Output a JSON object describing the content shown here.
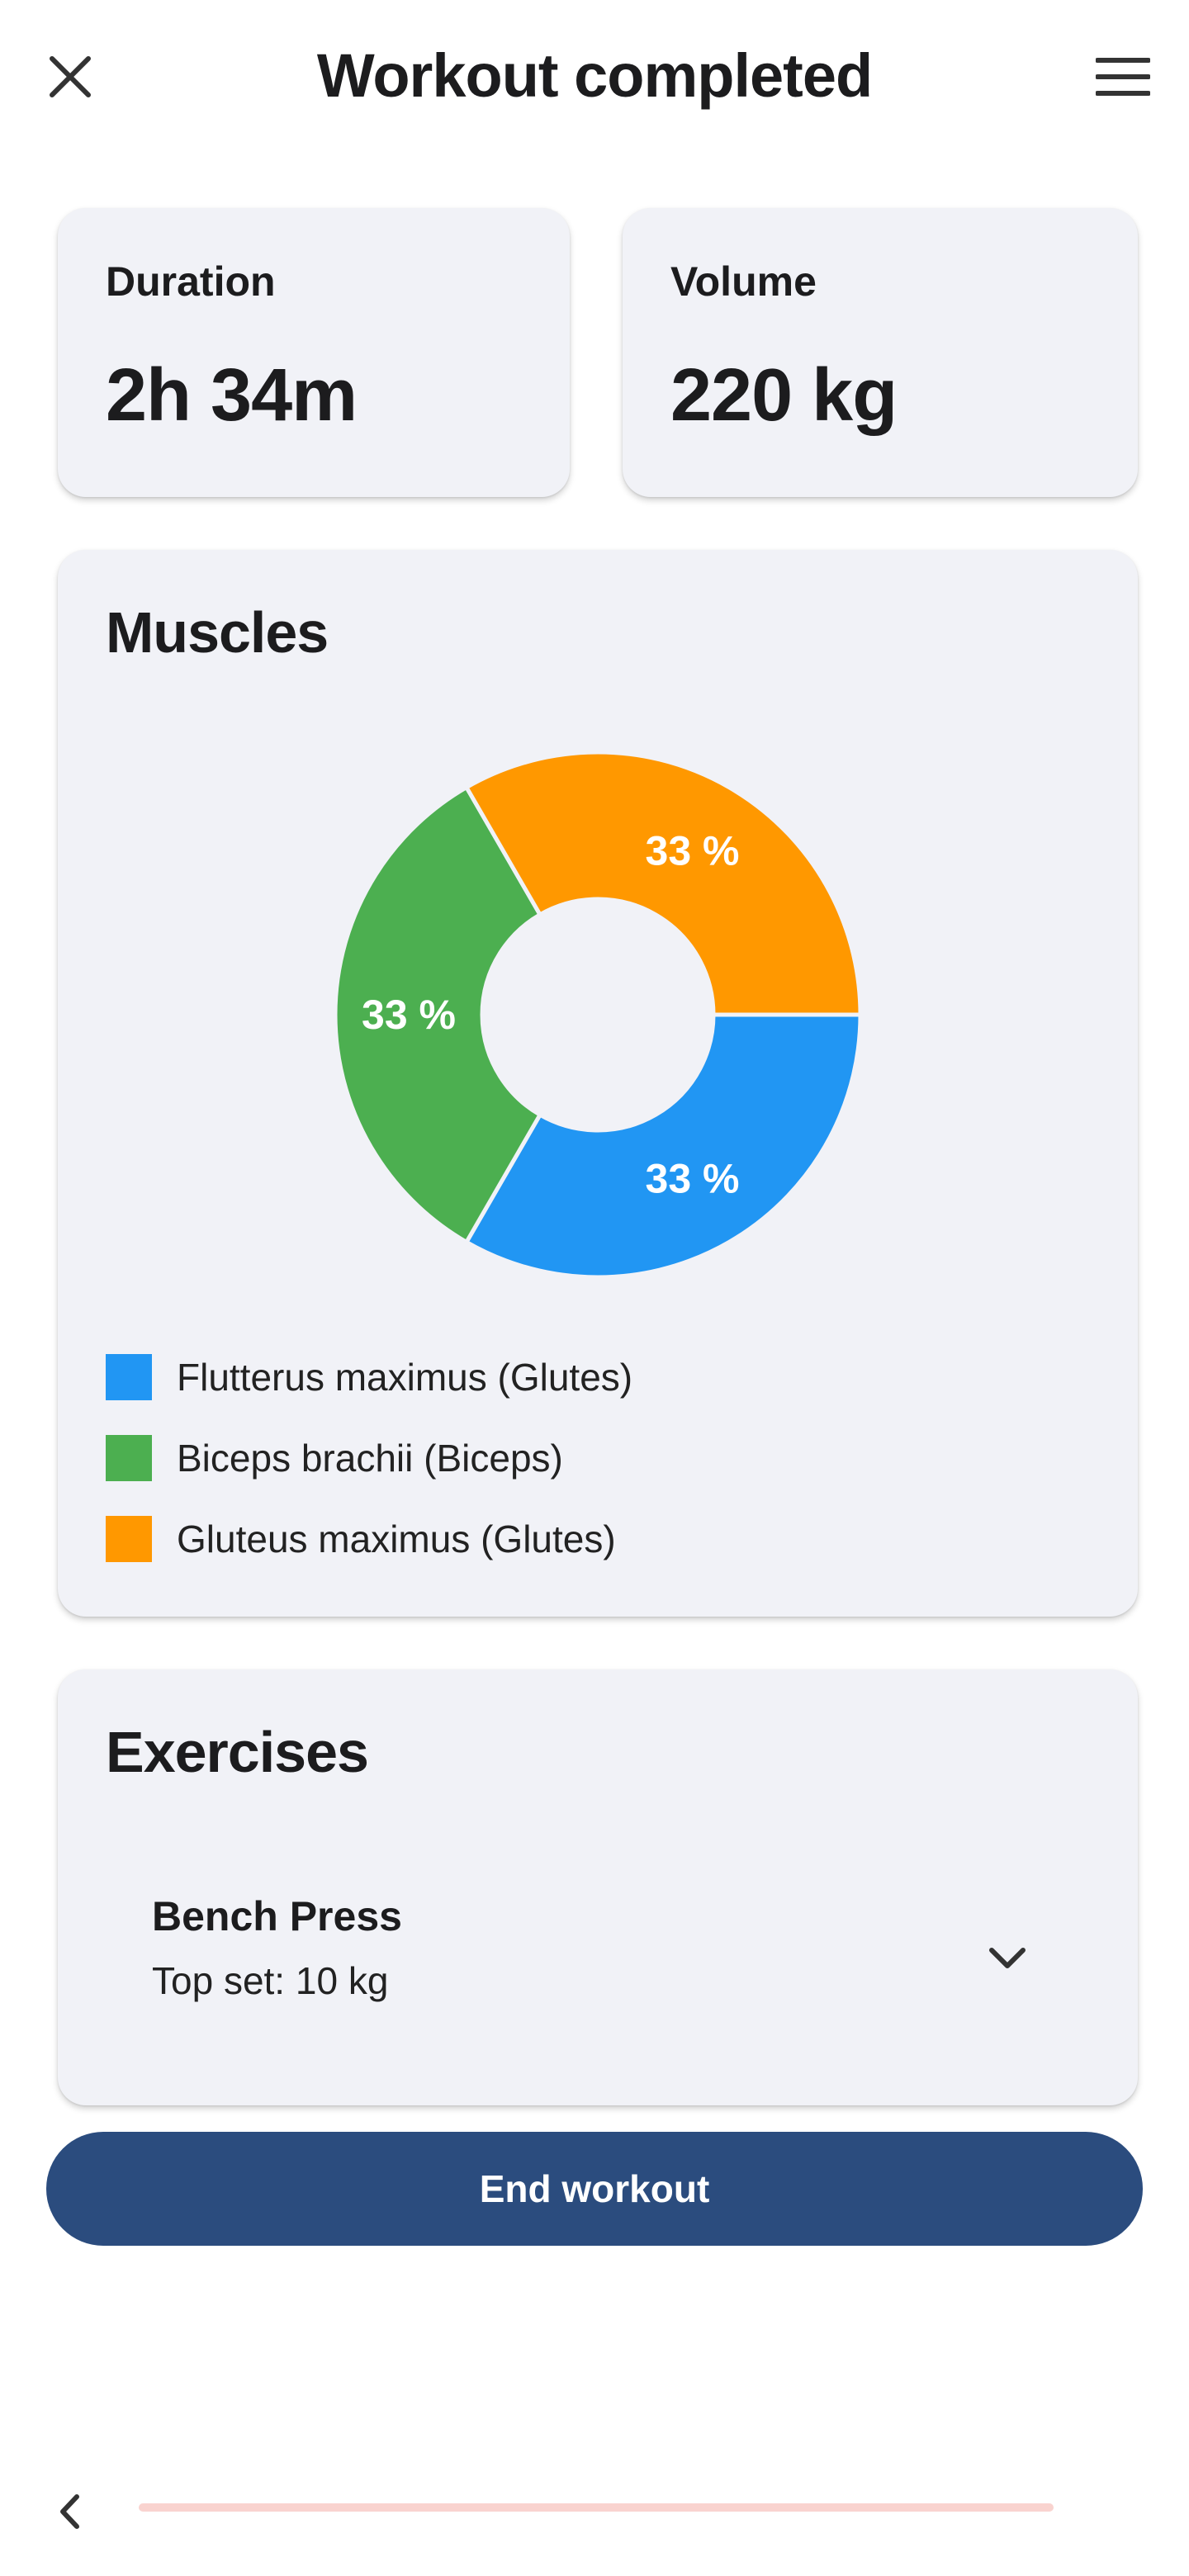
{
  "header": {
    "title": "Workout completed",
    "close_icon": "close-icon",
    "menu_icon": "hamburger-menu-icon"
  },
  "stats": {
    "duration": {
      "label": "Duration",
      "value": "2h 34m"
    },
    "volume": {
      "label": "Volume",
      "value": "220 kg"
    }
  },
  "muscles": {
    "title": "Muscles",
    "legend": [
      {
        "label": "Flutterus maximus (Glutes)",
        "color": "#2196f3"
      },
      {
        "label": "Biceps brachii (Biceps)",
        "color": "#4caf50"
      },
      {
        "label": "Gluteus maximus (Glutes)",
        "color": "#ff9800"
      }
    ]
  },
  "chart_data": {
    "type": "pie",
    "donut": true,
    "categories": [
      "Flutterus maximus (Glutes)",
      "Biceps brachii (Biceps)",
      "Gluteus maximus (Glutes)"
    ],
    "values": [
      33,
      33,
      33
    ],
    "labels": [
      "33 %",
      "33 %",
      "33 %"
    ],
    "colors": [
      "#2196f3",
      "#4caf50",
      "#ff9800"
    ],
    "legend": "bottom-left"
  },
  "exercises": {
    "title": "Exercises",
    "items": [
      {
        "name": "Bench Press",
        "summary": "Top set: 10 kg",
        "expand_icon": "chevron-down-icon"
      }
    ]
  },
  "actions": {
    "end_workout": "End workout"
  },
  "footer": {
    "back_icon": "chevron-left-icon",
    "progress": 0
  }
}
